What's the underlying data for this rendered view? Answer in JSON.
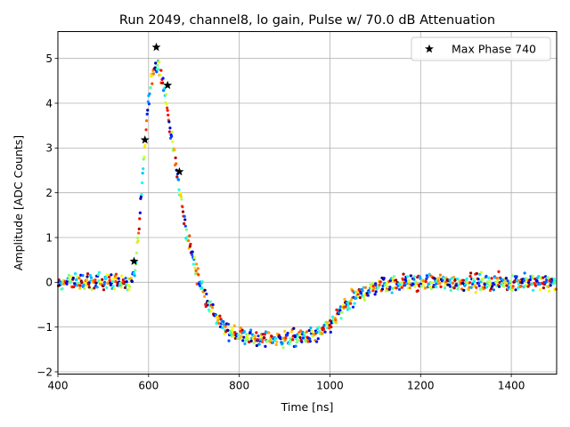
{
  "chart_data": {
    "type": "scatter",
    "title": "Run 2049, channel8, lo gain, Pulse w/ 70.0 dB Attenuation",
    "xlabel": "Time [ns]",
    "ylabel": "Amplitude [ADC Counts]",
    "xlim": [
      400,
      1500
    ],
    "ylim": [
      -2.05,
      5.6
    ],
    "xticks": [
      400,
      600,
      800,
      1000,
      1200,
      1400
    ],
    "yticks": [
      -2,
      -1,
      0,
      1,
      2,
      3,
      4,
      5
    ],
    "grid": true,
    "legend_position": "top-right",
    "pulse_shape": {
      "time": [
        400,
        560,
        572,
        585,
        598,
        610,
        622,
        635,
        648,
        662,
        680,
        700,
        720,
        740,
        760,
        780,
        800,
        830,
        860,
        900,
        940,
        980,
        1000,
        1020,
        1040,
        1060,
        1080,
        1100,
        1130,
        1160,
        1500
      ],
      "amplitude": [
        0,
        0,
        0.35,
        2.0,
        3.9,
        4.75,
        4.85,
        4.3,
        3.4,
        2.5,
        1.3,
        0.45,
        -0.2,
        -0.65,
        -0.95,
        -1.1,
        -1.18,
        -1.24,
        -1.26,
        -1.26,
        -1.24,
        -1.15,
        -0.95,
        -0.7,
        -0.48,
        -0.32,
        -0.2,
        -0.1,
        -0.03,
        0,
        0
      ]
    },
    "series": [
      {
        "name": "Max Phase 740",
        "marker": "star",
        "color": "#000000",
        "x": [
          568,
          592,
          617,
          642,
          668
        ],
        "y": [
          0.47,
          3.18,
          5.25,
          4.4,
          2.47
        ]
      }
    ]
  }
}
